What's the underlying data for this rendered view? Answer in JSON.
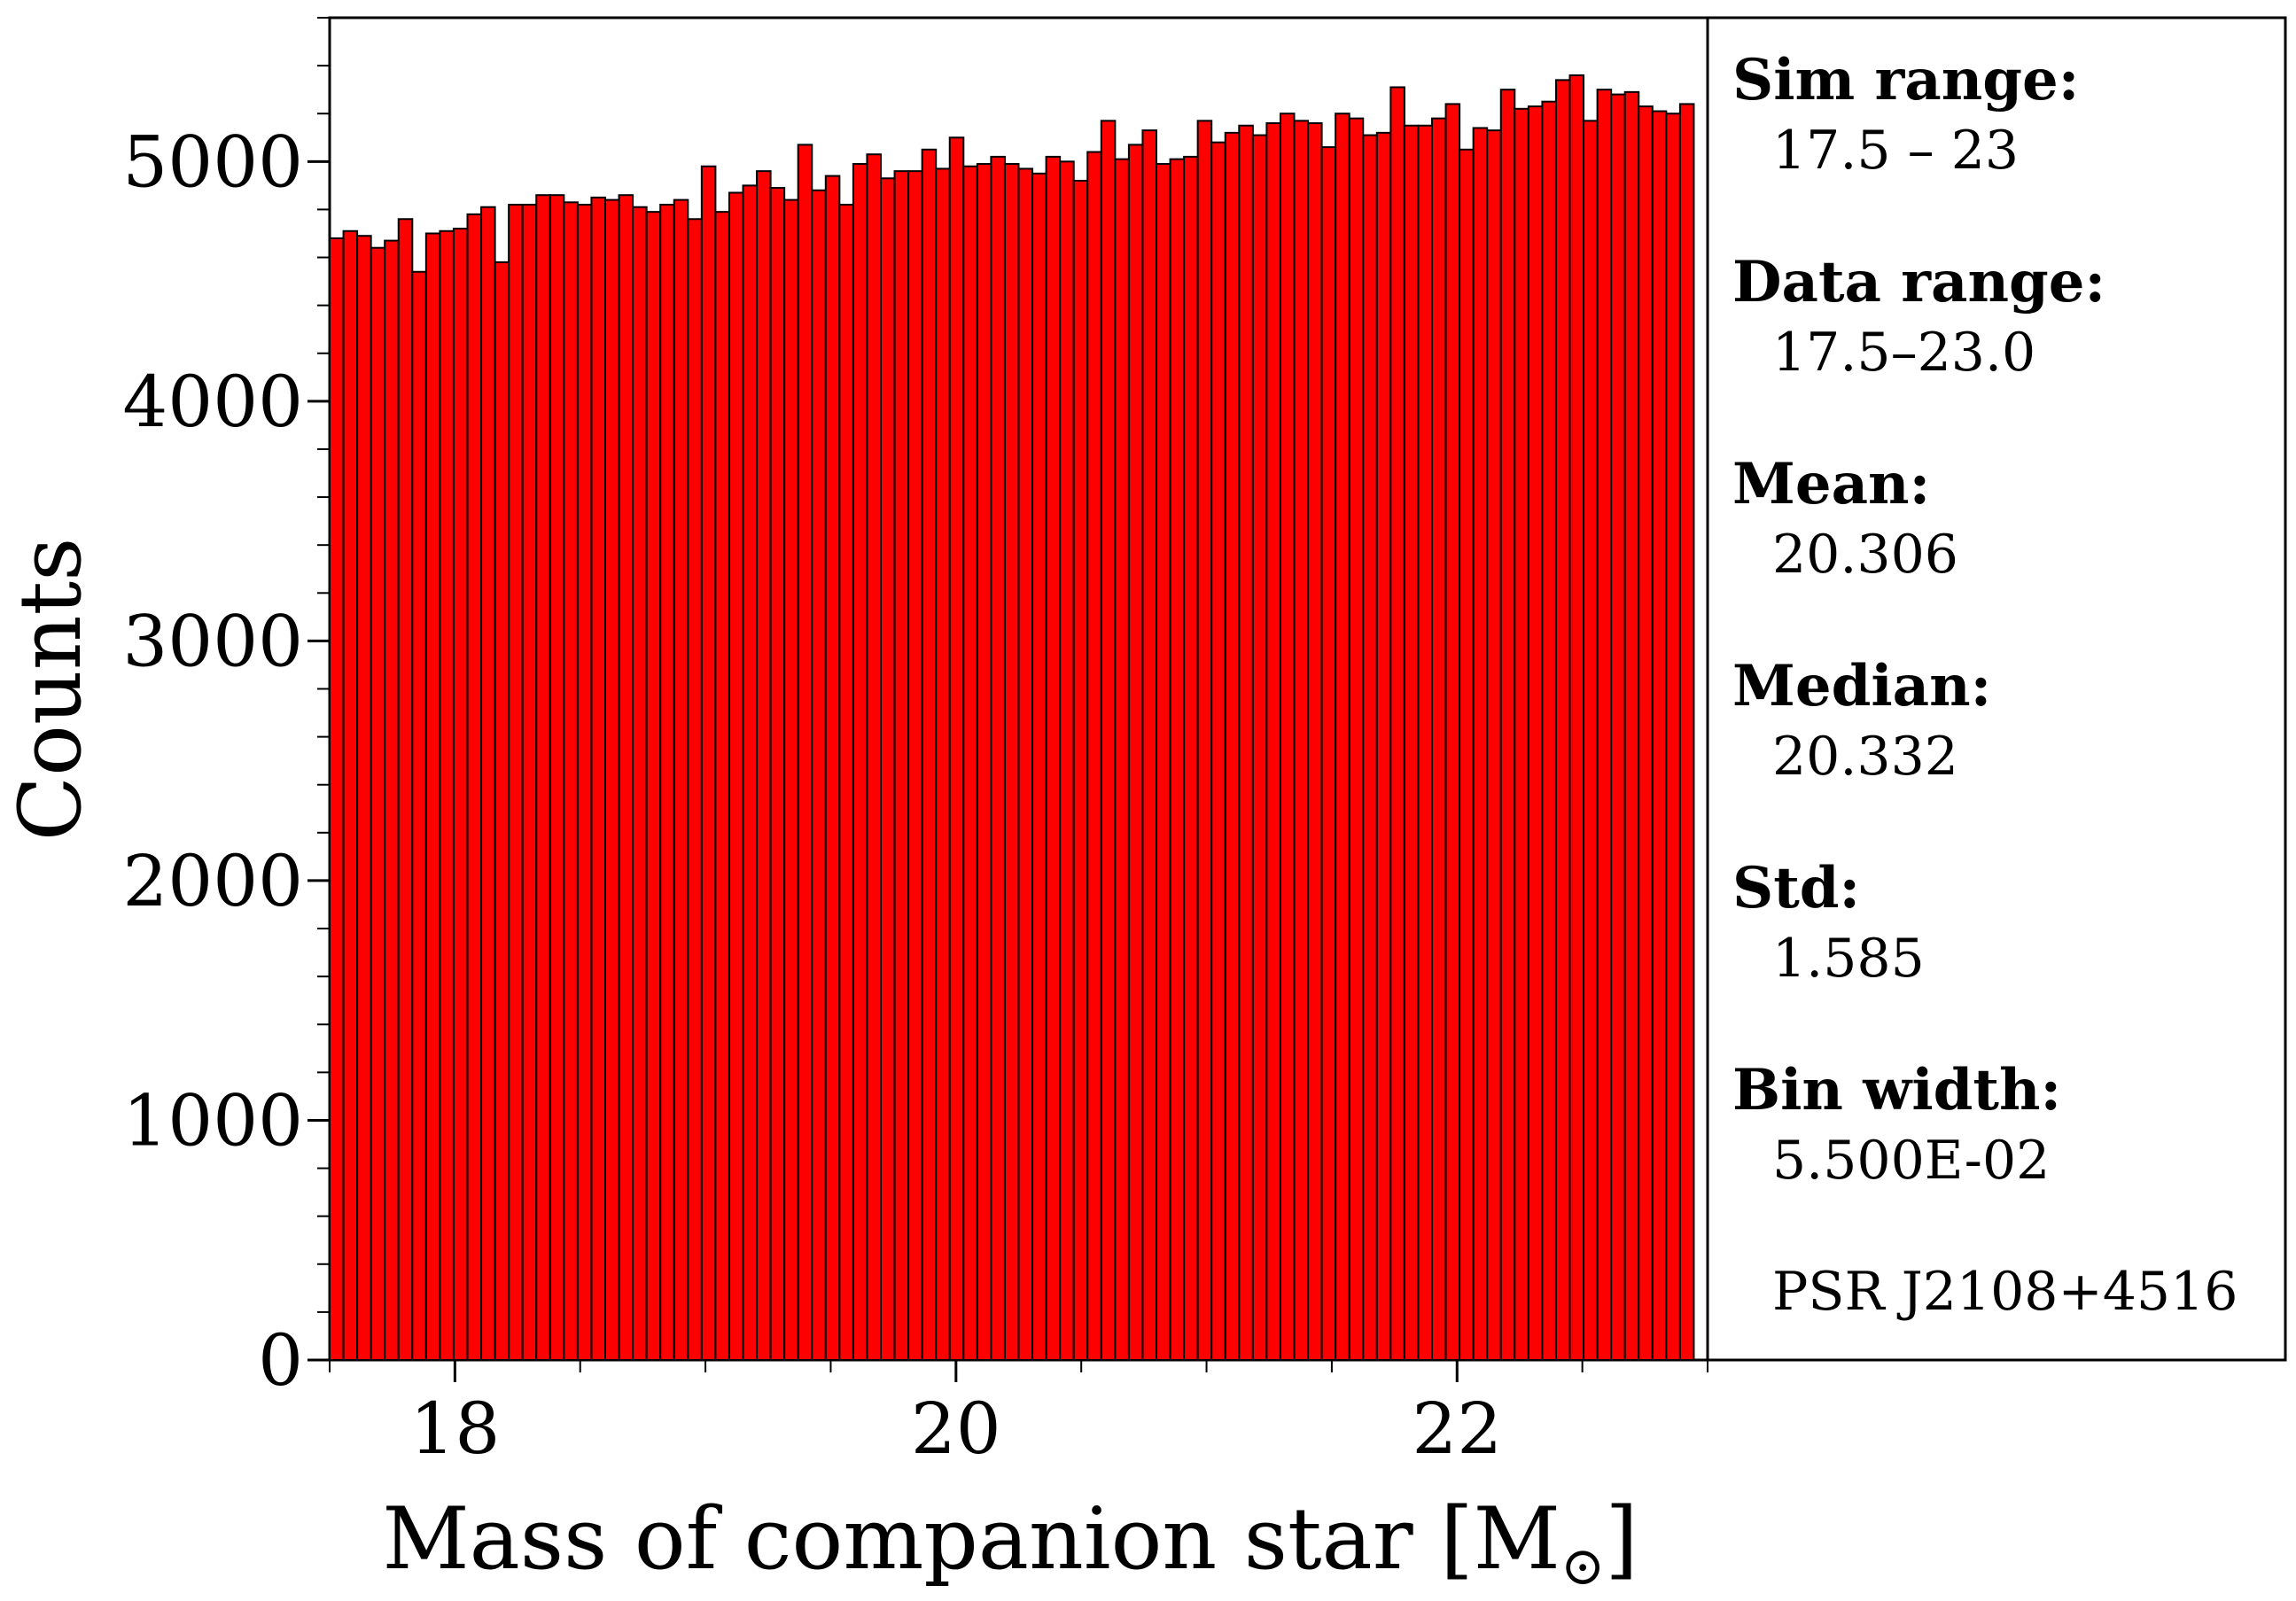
{
  "chart_data": {
    "type": "bar",
    "xlabel": "Mass of companion star [M",
    "xlabel_symbol": "⊙",
    "xlabel_end": "]",
    "ylabel": "Counts",
    "xlim": [
      17.5,
      23.0
    ],
    "ylim": [
      0,
      5600
    ],
    "x_ticks": [
      18,
      20,
      22
    ],
    "y_ticks": [
      0,
      1000,
      2000,
      3000,
      4000,
      5000
    ],
    "bin_start": 17.5,
    "bin_width": 0.055,
    "bar_color": "#ff0000",
    "edge_color": "#000000",
    "values": [
      4680,
      4710,
      4690,
      4640,
      4670,
      4760,
      4540,
      4700,
      4710,
      4720,
      4780,
      4810,
      4580,
      4820,
      4820,
      4860,
      4860,
      4830,
      4820,
      4850,
      4840,
      4860,
      4810,
      4790,
      4820,
      4840,
      4760,
      4980,
      4790,
      4870,
      4900,
      4960,
      4890,
      4840,
      5070,
      4880,
      4940,
      4820,
      4990,
      5030,
      4930,
      4960,
      4960,
      5050,
      4970,
      5100,
      4980,
      4990,
      5020,
      4990,
      4970,
      4950,
      5020,
      5000,
      4920,
      5040,
      5170,
      5010,
      5070,
      5130,
      4990,
      5010,
      5020,
      5170,
      5080,
      5120,
      5150,
      5110,
      5160,
      5200,
      5170,
      5160,
      5060,
      5200,
      5180,
      5110,
      5120,
      5310,
      5150,
      5150,
      5180,
      5240,
      5050,
      5140,
      5130,
      5300,
      5220,
      5230,
      5250,
      5340,
      5360,
      5170,
      5300,
      5280,
      5290,
      5230,
      5210,
      5200,
      5240
    ]
  },
  "stats": {
    "sim_range_label": "Sim range:",
    "sim_range_value": "17.5 – 23",
    "data_range_label": "Data range:",
    "data_range_value": "17.5–23.0",
    "mean_label": "Mean:",
    "mean_value": "20.306",
    "median_label": "Median:",
    "median_value": "20.332",
    "std_label": "Std:",
    "std_value": "1.585",
    "bin_width_label": "Bin width:",
    "bin_width_value": "5.500E-02",
    "source_label": "PSR J2108+4516"
  }
}
